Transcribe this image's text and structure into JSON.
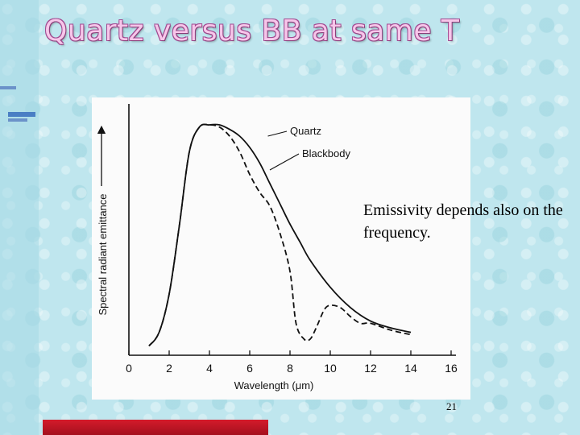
{
  "slide": {
    "title": "Quartz versus BB at same T",
    "caption": "Emissivity depends also on the frequency.",
    "page_number": "21"
  },
  "colors": {
    "title_fill": "#f7c6ea",
    "title_outline": "#a24b91",
    "background": "#bfe6ee",
    "bottom_bar": "#d41b2b",
    "deco_dashes": "#4a7ec4"
  },
  "chart_data": {
    "type": "line",
    "xlabel": "Wavelength (μm)",
    "ylabel": "Spectral radiant emittance",
    "xlim": [
      0,
      16
    ],
    "x_ticks": [
      "0",
      "2",
      "4",
      "6",
      "8",
      "10",
      "12",
      "14",
      "16"
    ],
    "y_ticks": [],
    "grid": false,
    "series": [
      {
        "name": "Quartz",
        "style": "solid",
        "x": [
          1.0,
          1.5,
          2.0,
          2.5,
          3.0,
          3.5,
          4.0,
          4.5,
          5.0,
          5.5,
          6.0,
          6.5,
          7.0,
          7.5,
          8.0,
          8.5,
          9.0,
          10.0,
          11.0,
          12.0,
          13.0,
          14.0
        ],
        "y": [
          0.02,
          0.08,
          0.25,
          0.55,
          0.88,
          0.99,
          1.0,
          1.0,
          0.98,
          0.95,
          0.9,
          0.83,
          0.74,
          0.65,
          0.56,
          0.48,
          0.4,
          0.28,
          0.19,
          0.13,
          0.1,
          0.08
        ]
      },
      {
        "name": "Blackbody",
        "style": "dashed",
        "x": [
          1.0,
          1.5,
          2.0,
          2.5,
          3.0,
          3.5,
          4.0,
          4.5,
          5.0,
          5.5,
          6.0,
          6.5,
          7.0,
          7.5,
          8.0,
          8.3,
          8.7,
          9.0,
          9.3,
          9.7,
          10.0,
          10.5,
          11.0,
          11.5,
          12.0,
          13.0,
          14.0
        ],
        "y": [
          0.02,
          0.08,
          0.25,
          0.55,
          0.88,
          0.99,
          1.0,
          0.99,
          0.95,
          0.88,
          0.78,
          0.7,
          0.64,
          0.52,
          0.35,
          0.12,
          0.05,
          0.05,
          0.1,
          0.18,
          0.2,
          0.19,
          0.15,
          0.12,
          0.12,
          0.09,
          0.07
        ]
      }
    ],
    "annotations": [
      "Quartz",
      "Blackbody"
    ]
  }
}
